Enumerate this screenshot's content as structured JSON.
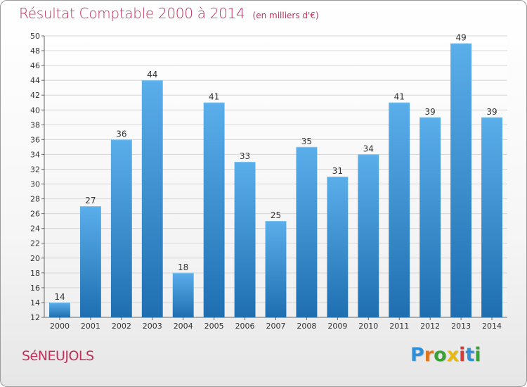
{
  "header": {
    "title": "Résultat Comptable 2000 à 2014",
    "subtitle": "(en milliers d'€)"
  },
  "footer": {
    "commune": "SéNEUJOLS",
    "brand": "Proxiti",
    "brand_colors": [
      "#2f8fd8",
      "#e2761b",
      "#3aa335",
      "#e8b80b",
      "#d83a3a",
      "#2f8fd8",
      "#3aa335"
    ]
  },
  "colors": {
    "title": "#c0305a",
    "bar_top": "#5aaeea",
    "bar_bottom": "#1f6fb0",
    "grid": "#d6d6d6",
    "axis_text": "#333333"
  },
  "chart_data": {
    "type": "bar",
    "title": "Résultat Comptable 2000 à 2014",
    "subtitle": "(en milliers d'€)",
    "categories": [
      "2000",
      "2001",
      "2002",
      "2003",
      "2004",
      "2005",
      "2006",
      "2007",
      "2008",
      "2009",
      "2010",
      "2011",
      "2012",
      "2013",
      "2014"
    ],
    "values": [
      14,
      27,
      36,
      44,
      18,
      41,
      33,
      25,
      35,
      31,
      34,
      41,
      39,
      49,
      39
    ],
    "ylim": [
      12,
      50
    ],
    "ytick_step": 2,
    "grid": true,
    "data_labels": true
  }
}
